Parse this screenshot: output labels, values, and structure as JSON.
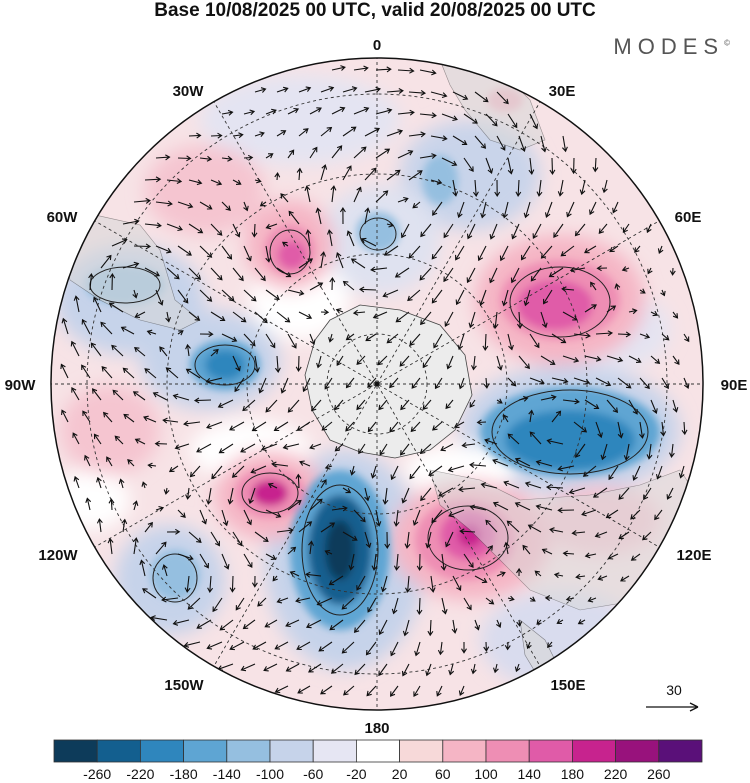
{
  "title": "Base 10/08/2025 00 UTC, valid 20/08/2025 00 UTC",
  "brand": "MODES",
  "brand_mark": "©",
  "longitude_labels": [
    "0",
    "30E",
    "60E",
    "90E",
    "120E",
    "150E",
    "180",
    "150W",
    "120W",
    "90W",
    "60W",
    "30W"
  ],
  "vector_reference": {
    "value": "30"
  },
  "colorbar": {
    "colors": [
      "#0d3b5a",
      "#135f8f",
      "#2f86bd",
      "#5ea5d3",
      "#95bfe0",
      "#c6d3ea",
      "#e6e6f3",
      "#ffffff",
      "#f7d9d9",
      "#f5b5c5",
      "#ee8eb4",
      "#e05ba8",
      "#c7238e",
      "#98127c",
      "#5a1079"
    ],
    "ticks": [
      "-260",
      "-220",
      "-180",
      "-140",
      "-100",
      "-60",
      "-20",
      "20",
      "60",
      "100",
      "140",
      "180",
      "220",
      "260"
    ]
  },
  "icons": {
    "arrow": "arrow-icon",
    "pole": "pole-dot-icon"
  }
}
